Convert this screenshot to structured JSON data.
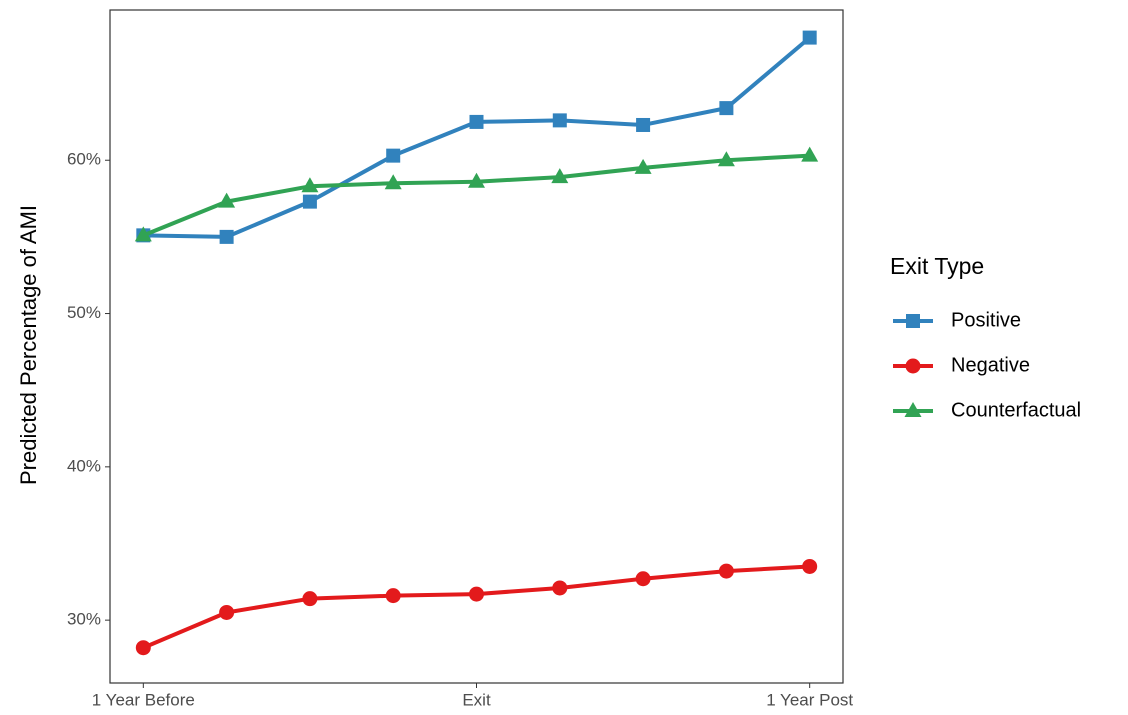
{
  "chart_data": {
    "type": "line",
    "y_label": "Predicted Percentage of AMI",
    "legend_title": "Exit Type",
    "categories": [
      "1 Year Before",
      null,
      null,
      null,
      "Exit",
      null,
      null,
      null,
      "1 Year Post"
    ],
    "ylim": [
      25.9,
      69.8
    ],
    "yticks": [
      {
        "value": 30,
        "label": "30%"
      },
      {
        "value": 40,
        "label": "40%"
      },
      {
        "value": 50,
        "label": "50%"
      },
      {
        "value": 60,
        "label": "60%"
      }
    ],
    "grid": false,
    "legend": "right",
    "series": [
      {
        "name": "Positive",
        "color": "#3182bd",
        "marker": "square",
        "values": [
          55.1,
          55.0,
          57.3,
          60.3,
          62.5,
          62.6,
          62.3,
          63.4,
          68.0
        ]
      },
      {
        "name": "Negative",
        "color": "#e31a1c",
        "marker": "circle",
        "values": [
          28.2,
          30.5,
          31.4,
          31.6,
          31.7,
          32.1,
          32.7,
          33.2,
          33.5
        ]
      },
      {
        "name": "Counterfactual",
        "color": "#31a354",
        "marker": "triangle",
        "values": [
          55.1,
          57.3,
          58.3,
          58.5,
          58.6,
          58.9,
          59.5,
          60.0,
          60.3
        ]
      }
    ]
  }
}
